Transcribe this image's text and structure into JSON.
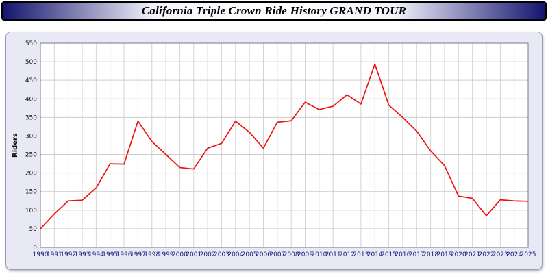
{
  "header": {
    "title": "California Triple Crown Ride History GRAND TOUR"
  },
  "chart_data": {
    "type": "line",
    "title": "California Triple Crown Ride History GRAND TOUR",
    "xlabel": "",
    "ylabel": "Riders",
    "ylim": [
      0,
      550
    ],
    "ytick_step": 50,
    "grid": true,
    "legend_position": "none",
    "line_color": "#ee1111",
    "plot_bg": "#ffffff",
    "x": [
      "1990",
      "1991",
      "1992",
      "1993",
      "1994",
      "1995",
      "1996",
      "1997",
      "1998",
      "1999",
      "2000",
      "2001",
      "2002",
      "2003",
      "2004",
      "2005",
      "2006",
      "2007",
      "2008",
      "2009",
      "2010",
      "2011",
      "2012",
      "2013",
      "2014",
      "2015",
      "2016",
      "2017",
      "2018",
      "2019",
      "2020",
      "2021",
      "2022",
      "2023",
      "2024",
      "2025"
    ],
    "values": [
      50,
      90,
      125,
      127,
      160,
      225,
      224,
      340,
      285,
      250,
      215,
      211,
      267,
      280,
      340,
      310,
      267,
      337,
      341,
      391,
      371,
      380,
      411,
      386,
      494,
      383,
      350,
      313,
      260,
      220,
      138,
      132,
      85,
      128,
      125,
      124
    ]
  }
}
